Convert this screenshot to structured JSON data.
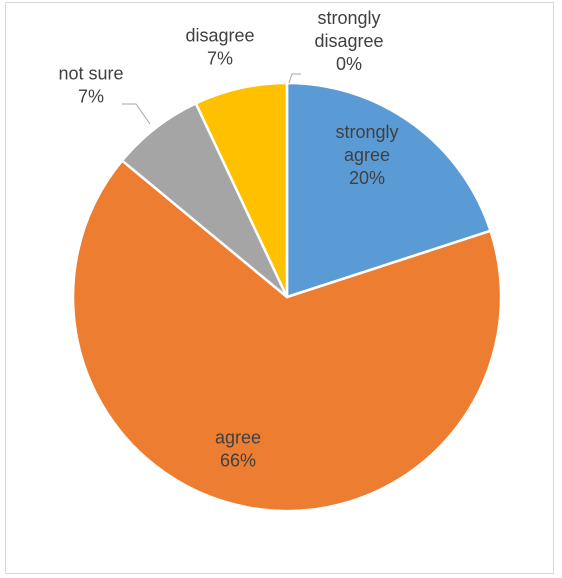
{
  "chart_data": {
    "type": "pie",
    "title": "",
    "categories": [
      "strongly agree",
      "agree",
      "not sure",
      "disagree",
      "strongly disagree"
    ],
    "values": [
      20,
      66,
      7,
      7,
      0
    ],
    "data_labels": [
      [
        "strongly",
        "agree",
        "20%"
      ],
      [
        "agree",
        "66%"
      ],
      [
        "not sure",
        "7%"
      ],
      [
        "disagree",
        "7%"
      ],
      [
        "strongly",
        "disagree",
        "0%"
      ]
    ],
    "colors": [
      "#5b9bd5",
      "#ed7d31",
      "#a5a5a5",
      "#ffc000",
      "#4472c4"
    ],
    "label_colors": [
      "#404040",
      "#404040",
      "#404040",
      "#404040",
      "#404040"
    ],
    "start_angle": "12 o'clock",
    "direction": "clockwise",
    "legend": "none"
  }
}
